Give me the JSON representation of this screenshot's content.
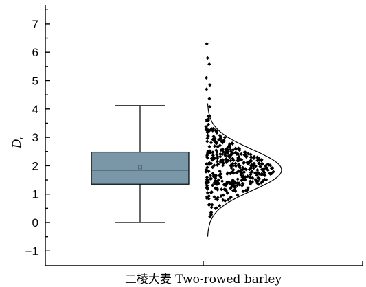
{
  "chart_data": {
    "type": "box",
    "ylabel": "D",
    "ylabel_subscript": "i",
    "xlabel": "二棱大麦 Two-rowed barley",
    "ylim": [
      -1.5,
      7.6
    ],
    "yticks": [
      -1,
      0,
      1,
      2,
      3,
      4,
      5,
      6,
      7
    ],
    "grid": false,
    "box": {
      "min": 0,
      "q1": 1.35,
      "median": 1.85,
      "mean": 1.95,
      "q3": 2.48,
      "max": 4.12,
      "fill_color": "#7a97a8"
    },
    "distribution_curve": {
      "mean": 1.85,
      "sd": 0.72,
      "y_from": -0.5,
      "y_to": 4.2
    },
    "scatter": {
      "count": 420,
      "min": 0.0,
      "max": 6.3,
      "marker": "diamond",
      "color": "#000000"
    }
  }
}
